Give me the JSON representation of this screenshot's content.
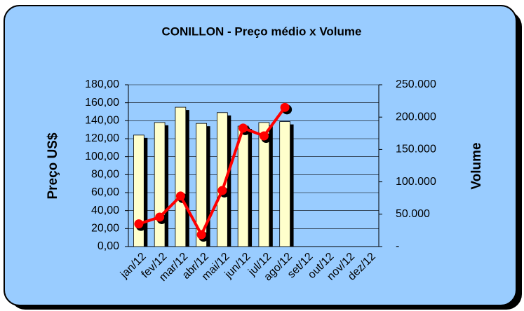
{
  "chart_data": {
    "type": "bar",
    "title": "CONILLON - Preço médio x Volume",
    "y_label": "Preço US$",
    "y2_label": "Volume",
    "categories": [
      "jan/12",
      "fev/12",
      "mar/12",
      "abr/12",
      "mai/12",
      "jun/12",
      "jul/12",
      "ago/12",
      "set/12",
      "out/12",
      "nov/12",
      "dez/12"
    ],
    "series": [
      {
        "type": "bar",
        "color": "#ffffcc",
        "values": [
          124,
          138,
          155,
          137,
          149,
          134,
          138,
          139,
          null,
          null,
          null,
          null
        ]
      },
      {
        "type": "line",
        "axis": "y2",
        "color": "#ff0000",
        "values": [
          35000,
          45500,
          78000,
          18400,
          86600,
          183000,
          171000,
          215000,
          null,
          null,
          null,
          null
        ]
      }
    ],
    "ylim": [
      0,
      180
    ],
    "yticks": [
      {
        "value": 0,
        "label": "0,00"
      },
      {
        "value": 20,
        "label": "20,00"
      },
      {
        "value": 40,
        "label": "40,00"
      },
      {
        "value": 60,
        "label": "60,00"
      },
      {
        "value": 80,
        "label": "80,00"
      },
      {
        "value": 100,
        "label": "100,00"
      },
      {
        "value": 120,
        "label": "120,00"
      },
      {
        "value": 140,
        "label": "140,00"
      },
      {
        "value": 160,
        "label": "160,00"
      },
      {
        "value": 180,
        "label": "180,00"
      }
    ],
    "y2lim": [
      0,
      250000
    ],
    "y2ticks": [
      {
        "value": 0,
        "label": "-"
      },
      {
        "value": 50000,
        "label": "50.000"
      },
      {
        "value": 100000,
        "label": "100.000"
      },
      {
        "value": 150000,
        "label": "150.000"
      },
      {
        "value": 200000,
        "label": "200.000"
      },
      {
        "value": 250000,
        "label": "250.000"
      }
    ],
    "grid": true
  }
}
